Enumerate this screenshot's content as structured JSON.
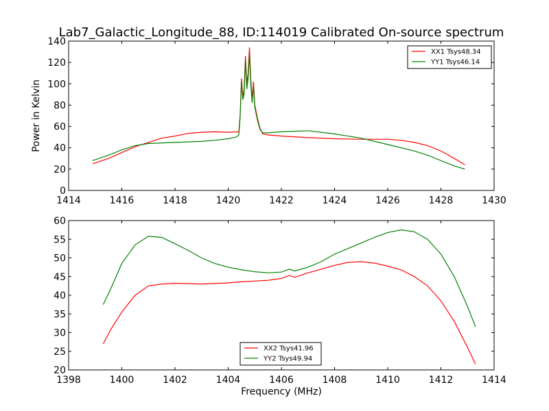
{
  "title": "Lab7_Galactic_Longitude_88, ID:114019 Calibrated On-source spectrum",
  "chart_data": [
    {
      "type": "line",
      "ylabel": "Power in Kelvin",
      "xlabel": "",
      "xlim": [
        1414,
        1430
      ],
      "ylim": [
        0,
        140
      ],
      "xticks": [
        1414,
        1416,
        1418,
        1420,
        1422,
        1424,
        1426,
        1428,
        1430
      ],
      "yticks": [
        0,
        20,
        40,
        60,
        80,
        100,
        120,
        140
      ],
      "legend_position": "upper-right",
      "series": [
        {
          "name": "XX1 Tsys48.34",
          "color": "#ff0000",
          "points": [
            [
              1414.9,
              25
            ],
            [
              1415.5,
              30
            ],
            [
              1416,
              35.5
            ],
            [
              1416.5,
              41
            ],
            [
              1417,
              45
            ],
            [
              1417.5,
              49
            ],
            [
              1418,
              51
            ],
            [
              1418.5,
              53.5
            ],
            [
              1419,
              54.5
            ],
            [
              1419.5,
              55
            ],
            [
              1420,
              54.5
            ],
            [
              1420.4,
              55
            ],
            [
              1420.45,
              70
            ],
            [
              1420.5,
              105
            ],
            [
              1420.55,
              88
            ],
            [
              1420.6,
              95
            ],
            [
              1420.65,
              126
            ],
            [
              1420.7,
              100
            ],
            [
              1420.75,
              110
            ],
            [
              1420.8,
              134
            ],
            [
              1420.85,
              105
            ],
            [
              1420.9,
              85
            ],
            [
              1420.95,
              102
            ],
            [
              1421,
              80
            ],
            [
              1421.1,
              68
            ],
            [
              1421.2,
              58
            ],
            [
              1421.3,
              53
            ],
            [
              1421.5,
              52
            ],
            [
              1422,
              51
            ],
            [
              1423,
              49.5
            ],
            [
              1424,
              48.5
            ],
            [
              1425,
              48
            ],
            [
              1426,
              48
            ],
            [
              1426.5,
              47
            ],
            [
              1427,
              45
            ],
            [
              1427.5,
              42
            ],
            [
              1428,
              37
            ],
            [
              1428.5,
              30
            ],
            [
              1428.9,
              24
            ]
          ]
        },
        {
          "name": "YY1 Tsys46.14",
          "color": "#008000",
          "points": [
            [
              1414.9,
              28
            ],
            [
              1415.5,
              33
            ],
            [
              1416,
              38
            ],
            [
              1416.5,
              42
            ],
            [
              1417,
              44
            ],
            [
              1418,
              45
            ],
            [
              1419,
              46
            ],
            [
              1419.5,
              47
            ],
            [
              1420,
              48.5
            ],
            [
              1420.3,
              50
            ],
            [
              1420.4,
              52
            ],
            [
              1420.45,
              68
            ],
            [
              1420.5,
              102
            ],
            [
              1420.55,
              85
            ],
            [
              1420.6,
              90
            ],
            [
              1420.65,
              122
            ],
            [
              1420.7,
              95
            ],
            [
              1420.75,
              105
            ],
            [
              1420.8,
              128
            ],
            [
              1420.85,
              100
            ],
            [
              1420.9,
              82
            ],
            [
              1420.95,
              98
            ],
            [
              1421,
              78
            ],
            [
              1421.1,
              66
            ],
            [
              1421.2,
              57
            ],
            [
              1421.3,
              54
            ],
            [
              1421.5,
              54
            ],
            [
              1422,
              55
            ],
            [
              1423,
              56
            ],
            [
              1424,
              53
            ],
            [
              1425,
              49
            ],
            [
              1426,
              43
            ],
            [
              1427,
              37
            ],
            [
              1427.5,
              33
            ],
            [
              1428,
              28
            ],
            [
              1428.5,
              23
            ],
            [
              1428.9,
              20
            ]
          ]
        }
      ]
    },
    {
      "type": "line",
      "ylabel": "",
      "xlabel": "Frequency (MHz)",
      "xlim": [
        1398,
        1414
      ],
      "ylim": [
        20,
        60
      ],
      "xticks": [
        1398,
        1400,
        1402,
        1404,
        1406,
        1408,
        1410,
        1412,
        1414
      ],
      "yticks": [
        20,
        25,
        30,
        35,
        40,
        45,
        50,
        55,
        60
      ],
      "legend_position": "lower-center",
      "series": [
        {
          "name": "XX2 Tsys41.96",
          "color": "#ff0000",
          "points": [
            [
              1399.3,
              27
            ],
            [
              1399.6,
              31
            ],
            [
              1400,
              35.5
            ],
            [
              1400.5,
              40
            ],
            [
              1401,
              42.5
            ],
            [
              1401.5,
              43
            ],
            [
              1402,
              43.2
            ],
            [
              1403,
              43
            ],
            [
              1404,
              43.3
            ],
            [
              1404.5,
              43.6
            ],
            [
              1405,
              43.8
            ],
            [
              1405.5,
              44
            ],
            [
              1406,
              44.5
            ],
            [
              1406.3,
              45.3
            ],
            [
              1406.5,
              44.8
            ],
            [
              1407,
              46
            ],
            [
              1407.5,
              47
            ],
            [
              1408,
              48
            ],
            [
              1408.5,
              48.8
            ],
            [
              1409,
              49
            ],
            [
              1409.5,
              48.6
            ],
            [
              1410,
              47.8
            ],
            [
              1410.5,
              46.8
            ],
            [
              1411,
              45
            ],
            [
              1411.5,
              42.5
            ],
            [
              1412,
              38.5
            ],
            [
              1412.5,
              33
            ],
            [
              1413,
              26
            ],
            [
              1413.3,
              21.5
            ]
          ]
        },
        {
          "name": "YY2 Tsys49.94",
          "color": "#008000",
          "points": [
            [
              1399.3,
              37.5
            ],
            [
              1399.6,
              42
            ],
            [
              1400,
              48.5
            ],
            [
              1400.5,
              53.5
            ],
            [
              1401,
              55.8
            ],
            [
              1401.5,
              55.5
            ],
            [
              1402,
              53.8
            ],
            [
              1402.5,
              52
            ],
            [
              1403,
              50
            ],
            [
              1403.5,
              48.5
            ],
            [
              1404,
              47.5
            ],
            [
              1404.5,
              46.8
            ],
            [
              1405,
              46.3
            ],
            [
              1405.5,
              46
            ],
            [
              1406,
              46.2
            ],
            [
              1406.3,
              47
            ],
            [
              1406.5,
              46.5
            ],
            [
              1407,
              47.5
            ],
            [
              1407.5,
              49
            ],
            [
              1408,
              51
            ],
            [
              1408.5,
              52.5
            ],
            [
              1409,
              54
            ],
            [
              1409.5,
              55.5
            ],
            [
              1410,
              56.8
            ],
            [
              1410.5,
              57.5
            ],
            [
              1411,
              57
            ],
            [
              1411.5,
              55
            ],
            [
              1412,
              51
            ],
            [
              1412.5,
              45
            ],
            [
              1413,
              37
            ],
            [
              1413.3,
              31.5
            ]
          ]
        }
      ]
    }
  ]
}
